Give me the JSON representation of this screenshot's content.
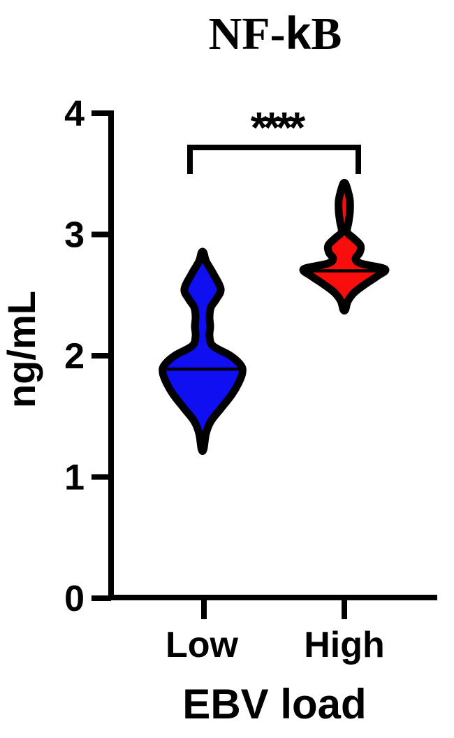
{
  "chart_data": {
    "type": "violin",
    "title": "NF-kB",
    "title_parts": {
      "pre": "NF-",
      "kappa": "k",
      "post": "B"
    },
    "ylabel": "ng/mL",
    "xlabel": "EBV load",
    "categories": [
      "Low",
      "High"
    ],
    "yticks": [
      0,
      1,
      2,
      3,
      4
    ],
    "ylim": [
      0,
      4
    ],
    "grid": false,
    "legend": false,
    "significance": {
      "label": "****",
      "compared_groups": [
        "Low",
        "High"
      ]
    },
    "groups": [
      {
        "name": "Low",
        "color": "#0f0ff2",
        "median": 1.89,
        "min": 1.23,
        "max": 2.85,
        "profile": [
          [
            2.85,
            1.5
          ],
          [
            2.78,
            5
          ],
          [
            2.68,
            15
          ],
          [
            2.55,
            26
          ],
          [
            2.47,
            20
          ],
          [
            2.4,
            12
          ],
          [
            2.32,
            10
          ],
          [
            2.24,
            11
          ],
          [
            2.16,
            10
          ],
          [
            2.08,
            15
          ],
          [
            2.0,
            40
          ],
          [
            1.92,
            55
          ],
          [
            1.86,
            57
          ],
          [
            1.78,
            52
          ],
          [
            1.68,
            42
          ],
          [
            1.57,
            27
          ],
          [
            1.46,
            12
          ],
          [
            1.36,
            5
          ],
          [
            1.23,
            1.5
          ]
        ]
      },
      {
        "name": "High",
        "color": "#f90d0d",
        "median": 2.7,
        "min": 2.38,
        "max": 3.42,
        "profile": [
          [
            3.42,
            1.5
          ],
          [
            3.36,
            5
          ],
          [
            3.28,
            8
          ],
          [
            3.19,
            8
          ],
          [
            3.1,
            6
          ],
          [
            3.02,
            4
          ],
          [
            2.97,
            13
          ],
          [
            2.91,
            23
          ],
          [
            2.85,
            22
          ],
          [
            2.8,
            16
          ],
          [
            2.76,
            24
          ],
          [
            2.715,
            58
          ],
          [
            2.66,
            48
          ],
          [
            2.59,
            30
          ],
          [
            2.52,
            14
          ],
          [
            2.45,
            5
          ],
          [
            2.38,
            1.5
          ]
        ]
      }
    ],
    "colors": {
      "low_violin": "#0f0ff2",
      "high_violin": "#f90d0d",
      "outline": "#000000",
      "background": "#ffffff"
    }
  }
}
